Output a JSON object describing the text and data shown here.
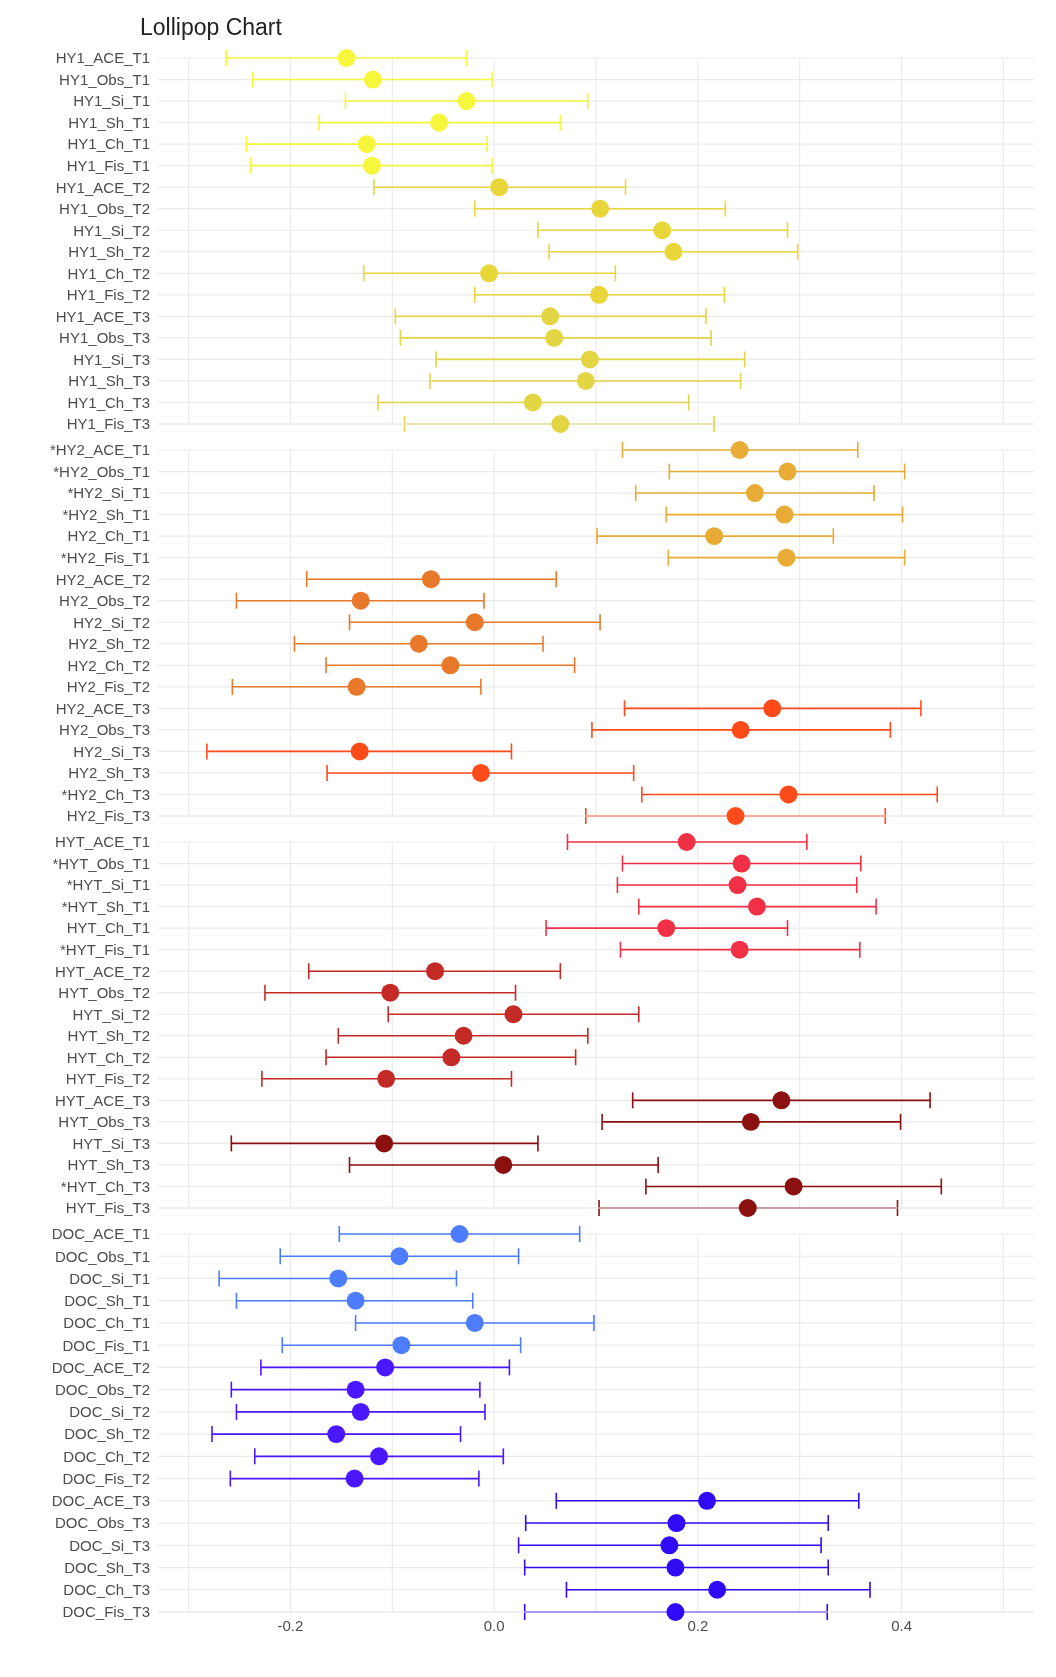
{
  "chart_data": [
    {
      "type": "scatter",
      "orientation": "horizontal",
      "title": "Lollipop Chart",
      "marker": "circle",
      "grid": true,
      "tick_labels": "y",
      "xlim": [
        -0.33,
        0.53
      ],
      "xticks": [
        -0.3,
        -0.2,
        -0.1,
        0,
        0.1,
        0.2,
        0.3,
        0.4,
        0.5
      ],
      "categories": [
        "HY1_ACE_T1",
        "HY1_Obs_T1",
        "HY1_Si_T1",
        "HY1_Sh_T1",
        "HY1_Ch_T1",
        "HY1_Fis_T1",
        "HY1_ACE_T2",
        "HY1_Obs_T2",
        "HY1_Si_T2",
        "HY1_Sh_T2",
        "HY1_Ch_T2",
        "HY1_Fis_T2",
        "HY1_ACE_T3",
        "HY1_Obs_T3",
        "HY1_Si_T3",
        "HY1_Sh_T3",
        "HY1_Ch_T3",
        "HY1_Fis_T3"
      ],
      "values": [
        -0.145,
        -0.119,
        -0.027,
        -0.054,
        -0.125,
        -0.12,
        0.005,
        0.104,
        0.165,
        0.176,
        -0.005,
        0.103,
        0.055,
        0.059,
        0.094,
        0.09,
        0.038,
        0.065
      ],
      "errors": [
        [
          -0.263,
          -0.027
        ],
        [
          -0.237,
          -0.002
        ],
        [
          -0.146,
          0.092
        ],
        [
          -0.172,
          0.065
        ],
        [
          -0.243,
          -0.007
        ],
        [
          -0.239,
          -0.002
        ],
        [
          -0.118,
          0.129
        ],
        [
          -0.019,
          0.227
        ],
        [
          0.043,
          0.288
        ],
        [
          0.054,
          0.298
        ],
        [
          -0.128,
          0.119
        ],
        [
          -0.019,
          0.226
        ],
        [
          -0.097,
          0.208
        ],
        [
          -0.092,
          0.213
        ],
        [
          -0.057,
          0.246
        ],
        [
          -0.063,
          0.242
        ],
        [
          -0.114,
          0.191
        ],
        [
          -0.088,
          0.216
        ]
      ],
      "colors": [
        "#f6f63c",
        "#f6f63c",
        "#f6f63c",
        "#f6f63c",
        "#f6f63c",
        "#f6f63c",
        "#e8d63a",
        "#e8d63a",
        "#e8d63a",
        "#e8d63a",
        "#e8d63a",
        "#e8d63a",
        "#e3d544",
        "#e3d544",
        "#e3d544",
        "#e3d544",
        "#e3d544",
        "#e3d544"
      ]
    },
    {
      "type": "scatter",
      "orientation": "horizontal",
      "marker": "circle",
      "grid": true,
      "tick_labels": "y",
      "xlim": [
        -0.33,
        0.53
      ],
      "xticks": [
        -0.3,
        -0.2,
        -0.1,
        0,
        0.1,
        0.2,
        0.3,
        0.4,
        0.5
      ],
      "categories": [
        "*HY2_ACE_T1",
        "*HY2_Obs_T1",
        "*HY2_Si_T1",
        "*HY2_Sh_T1",
        "HY2_Ch_T1",
        "*HY2_Fis_T1",
        "HY2_ACE_T2",
        "HY2_Obs_T2",
        "HY2_Si_T2",
        "HY2_Sh_T2",
        "HY2_Ch_T2",
        "HY2_Fis_T2",
        "HY2_ACE_T3",
        "HY2_Obs_T3",
        "HY2_Si_T3",
        "HY2_Sh_T3",
        "*HY2_Ch_T3",
        "HY2_Fis_T3"
      ],
      "values": [
        0.241,
        0.288,
        0.256,
        0.285,
        0.216,
        0.287,
        -0.062,
        -0.131,
        -0.019,
        -0.074,
        -0.043,
        -0.135,
        0.273,
        0.242,
        -0.132,
        -0.013,
        0.289,
        0.237
      ],
      "errors": [
        [
          0.126,
          0.357
        ],
        [
          0.172,
          0.403
        ],
        [
          0.139,
          0.373
        ],
        [
          0.169,
          0.401
        ],
        [
          0.101,
          0.333
        ],
        [
          0.171,
          0.403
        ],
        [
          -0.184,
          0.061
        ],
        [
          -0.253,
          -0.01
        ],
        [
          -0.142,
          0.104
        ],
        [
          -0.196,
          0.048
        ],
        [
          -0.165,
          0.079
        ],
        [
          -0.257,
          -0.013
        ],
        [
          0.128,
          0.419
        ],
        [
          0.096,
          0.389
        ],
        [
          -0.282,
          0.017
        ],
        [
          -0.164,
          0.137
        ],
        [
          0.145,
          0.435
        ],
        [
          0.09,
          0.384
        ]
      ],
      "colors": [
        "#e8ab35",
        "#e8ab35",
        "#e8ab35",
        "#e8ab35",
        "#e8ab35",
        "#e8ab35",
        "#e8782a",
        "#e8782a",
        "#e8782a",
        "#e8782a",
        "#e8782a",
        "#e8782a",
        "#ff4a1a",
        "#ff4a1a",
        "#ff4a1a",
        "#ff4a1a",
        "#ff4a1a",
        "#ff4a1a"
      ]
    },
    {
      "type": "scatter",
      "orientation": "horizontal",
      "marker": "circle",
      "grid": true,
      "tick_labels": "y",
      "xlim": [
        -0.33,
        0.53
      ],
      "xticks": [
        -0.3,
        -0.2,
        -0.1,
        0,
        0.1,
        0.2,
        0.3,
        0.4,
        0.5
      ],
      "categories": [
        "HYT_ACE_T1",
        "*HYT_Obs_T1",
        "*HYT_Si_T1",
        "*HYT_Sh_T1",
        "HYT_Ch_T1",
        "*HYT_Fis_T1",
        "HYT_ACE_T2",
        "HYT_Obs_T2",
        "HYT_Si_T2",
        "HYT_Sh_T2",
        "HYT_Ch_T2",
        "HYT_Fis_T2",
        "HYT_ACE_T3",
        "HYT_Obs_T3",
        "HYT_Si_T3",
        "HYT_Sh_T3",
        "*HYT_Ch_T3",
        "HYT_Fis_T3"
      ],
      "values": [
        0.189,
        0.243,
        0.239,
        0.258,
        0.169,
        0.241,
        -0.058,
        -0.102,
        0.019,
        -0.03,
        -0.042,
        -0.106,
        0.282,
        0.252,
        -0.108,
        0.009,
        0.294,
        0.249
      ],
      "errors": [
        [
          0.072,
          0.307
        ],
        [
          0.126,
          0.36
        ],
        [
          0.121,
          0.356
        ],
        [
          0.142,
          0.375
        ],
        [
          0.051,
          0.288
        ],
        [
          0.124,
          0.359
        ],
        [
          -0.182,
          0.065
        ],
        [
          -0.225,
          0.021
        ],
        [
          -0.104,
          0.142
        ],
        [
          -0.153,
          0.092
        ],
        [
          -0.165,
          0.08
        ],
        [
          -0.228,
          0.017
        ],
        [
          0.136,
          0.428
        ],
        [
          0.106,
          0.399
        ],
        [
          -0.258,
          0.043
        ],
        [
          -0.142,
          0.161
        ],
        [
          0.149,
          0.439
        ],
        [
          0.103,
          0.396
        ]
      ],
      "colors": [
        "#f03045",
        "#f03045",
        "#f03045",
        "#f03045",
        "#f03045",
        "#f03045",
        "#c42a26",
        "#c42a26",
        "#c42a26",
        "#c42a26",
        "#c42a26",
        "#c42a26",
        "#8b1010",
        "#8b1010",
        "#8b1010",
        "#8b1010",
        "#8b1010",
        "#8b1010"
      ]
    },
    {
      "type": "scatter",
      "orientation": "horizontal",
      "marker": "circle",
      "grid": true,
      "xlim": [
        -0.33,
        0.53
      ],
      "xticks": [
        {
          "value": -0.3,
          "label": null
        },
        {
          "value": -0.2,
          "label": "-0.2"
        },
        {
          "value": -0.1,
          "label": null
        },
        {
          "value": 0,
          "label": "0.0"
        },
        {
          "value": 0.1,
          "label": null
        },
        {
          "value": 0.2,
          "label": "0.2"
        },
        {
          "value": 0.3,
          "label": null
        },
        {
          "value": 0.4,
          "label": "0.4"
        },
        {
          "value": 0.5,
          "label": null
        }
      ],
      "categories": [
        "DOC_ACE_T1",
        "DOC_Obs_T1",
        "DOC_Si_T1",
        "DOC_Sh_T1",
        "DOC_Ch_T1",
        "DOC_Fis_T1",
        "DOC_ACE_T2",
        "DOC_Obs_T2",
        "DOC_Si_T2",
        "DOC_Sh_T2",
        "DOC_Ch_T2",
        "DOC_Fis_T2",
        "DOC_ACE_T3",
        "DOC_Obs_T3",
        "DOC_Si_T3",
        "DOC_Sh_T3",
        "DOC_Ch_T3",
        "DOC_Fis_T3"
      ],
      "values": [
        -0.034,
        -0.093,
        -0.153,
        -0.136,
        -0.019,
        -0.091,
        -0.107,
        -0.136,
        -0.131,
        -0.155,
        -0.113,
        -0.137,
        0.209,
        0.179,
        0.172,
        0.178,
        0.219,
        0.178
      ],
      "errors": [
        [
          -0.152,
          0.084
        ],
        [
          -0.21,
          0.024
        ],
        [
          -0.27,
          -0.037
        ],
        [
          -0.253,
          -0.021
        ],
        [
          -0.136,
          0.098
        ],
        [
          -0.208,
          0.026
        ],
        [
          -0.229,
          0.015
        ],
        [
          -0.258,
          -0.014
        ],
        [
          -0.253,
          -0.009
        ],
        [
          -0.277,
          -0.033
        ],
        [
          -0.235,
          0.009
        ],
        [
          -0.259,
          -0.015
        ],
        [
          0.061,
          0.358
        ],
        [
          0.031,
          0.328
        ],
        [
          0.024,
          0.321
        ],
        [
          0.03,
          0.328
        ],
        [
          0.071,
          0.369
        ],
        [
          0.03,
          0.327
        ]
      ],
      "colors": [
        "#4d7cfe",
        "#4d7cfe",
        "#4d7cfe",
        "#4d7cfe",
        "#4d7cfe",
        "#4d7cfe",
        "#4b17ff",
        "#4b17ff",
        "#4b17ff",
        "#4b17ff",
        "#4b17ff",
        "#4b17ff",
        "#2f0cf5",
        "#2f0cf5",
        "#2f0cf5",
        "#2f0cf5",
        "#2f0cf5",
        "#2f0cf5"
      ]
    }
  ]
}
